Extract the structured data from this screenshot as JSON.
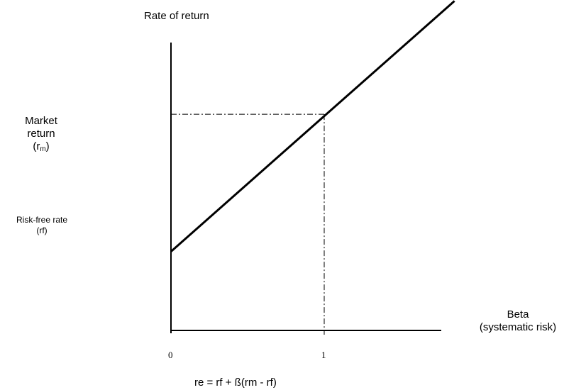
{
  "labels": {
    "y_axis_title": "Rate of return",
    "market_return_line1": "Market",
    "market_return_line2": "return",
    "market_return_symbol_open": "(r",
    "market_return_symbol_sub": "m",
    "market_return_symbol_close": ")",
    "risk_free_line1": "Risk-free rate",
    "risk_free_line2": "(rf)",
    "x_axis_title_line1": "Beta",
    "x_axis_title_line2": "(systematic risk)",
    "tick_zero": "0",
    "tick_one": "1",
    "formula": "re = rf + ß(rm - rf)"
  },
  "chart_data": {
    "type": "line",
    "xlabel": "Beta (systematic risk)",
    "ylabel": "Rate of return",
    "x_ticks": [
      "0",
      "1"
    ],
    "series": [
      {
        "x": [
          0,
          1,
          1.85
        ],
        "y": [
          0.2,
          0.6,
          0.93
        ]
      }
    ],
    "reference_point": {
      "x": 1,
      "y": 0.6
    }
  }
}
